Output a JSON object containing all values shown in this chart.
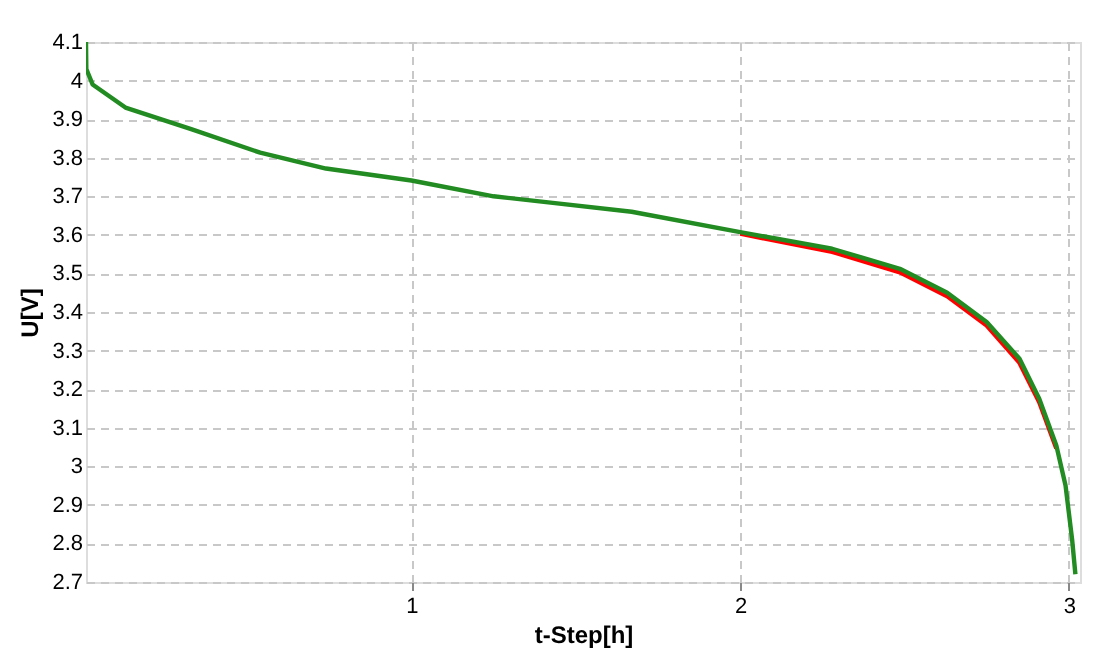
{
  "chart_data": {
    "type": "line",
    "xlabel": "t-Step[h]",
    "ylabel": "U[V]",
    "xlim": [
      0.01,
      3.034
    ],
    "ylim": [
      2.7,
      4.1
    ],
    "xticks": [
      1,
      2,
      3
    ],
    "yticks": [
      2.7,
      2.8,
      2.9,
      3,
      3.1,
      3.2,
      3.3,
      3.4,
      3.5,
      3.6,
      3.7,
      3.8,
      3.9,
      4,
      4.1
    ],
    "grid": true,
    "marker": "none",
    "line_style": "solid",
    "x": [
      0.01,
      0.011,
      0.03,
      0.13,
      0.33,
      0.54,
      0.74,
      1.0,
      1.25,
      1.43,
      1.67,
      2.0,
      2.28,
      2.486,
      2.63,
      2.75,
      2.85,
      2.91,
      2.962,
      2.99,
      3.01,
      3.02
    ],
    "series": [
      {
        "color": "#ff0000",
        "values": [
          null,
          null,
          null,
          null,
          null,
          null,
          null,
          null,
          null,
          null,
          null,
          3.603,
          3.556,
          3.503,
          3.441,
          3.365,
          3.268,
          3.166,
          3.046,
          null,
          null,
          null
        ]
      },
      {
        "color": "#228b22",
        "values": [
          4.1,
          4.03,
          3.99,
          3.93,
          3.874,
          3.813,
          3.772,
          3.741,
          3.7,
          3.683,
          3.66,
          3.607,
          3.564,
          3.512,
          3.45,
          3.374,
          3.279,
          3.175,
          3.054,
          2.95,
          2.81,
          2.72
        ]
      }
    ]
  }
}
